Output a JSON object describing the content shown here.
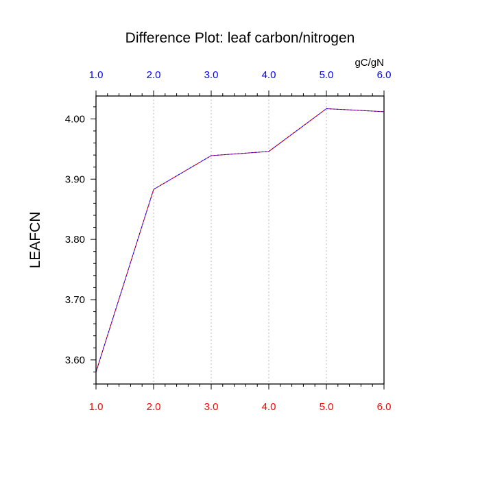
{
  "chart_data": {
    "type": "line",
    "title": "Difference Plot: leaf carbon/nitrogen",
    "units": "gC/gN",
    "ylabel": "LEAFCN",
    "xlabel": "",
    "xlim": [
      1.0,
      6.0
    ],
    "ylim": [
      3.56,
      4.038
    ],
    "x_ticks": [
      "1.0",
      "2.0",
      "3.0",
      "4.0",
      "5.0",
      "6.0"
    ],
    "y_ticks": [
      "3.60",
      "3.70",
      "3.80",
      "3.90",
      "4.00"
    ],
    "x_tick_values": [
      1,
      2,
      3,
      4,
      5,
      6
    ],
    "y_tick_values": [
      3.6,
      3.7,
      3.8,
      3.9,
      4.0
    ],
    "grid": "vertical dotted",
    "series": [
      {
        "name": "series-1",
        "color": "#0000ff",
        "x": [
          1,
          2,
          3,
          4,
          5,
          6
        ],
        "values": [
          3.58,
          3.883,
          3.939,
          3.946,
          4.017,
          4.012
        ]
      },
      {
        "name": "series-2",
        "color": "#ff0000",
        "x": [
          1,
          2,
          3,
          4,
          5,
          6
        ],
        "values": [
          3.58,
          3.883,
          3.939,
          3.946,
          4.017,
          4.012
        ]
      }
    ],
    "bottom_tick_color": "#ff0000",
    "top_tick_color": "#0000ff"
  }
}
